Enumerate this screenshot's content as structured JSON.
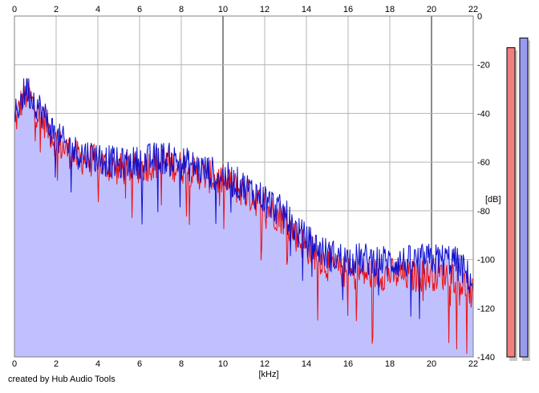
{
  "chart_data": {
    "type": "line",
    "title": "",
    "xlabel": "[kHz]",
    "ylabel": "[dB]",
    "xlim": [
      0,
      22
    ],
    "ylim": [
      -140,
      0
    ],
    "x_ticks": [
      "0",
      "2",
      "4",
      "6",
      "8",
      "10",
      "12",
      "14",
      "16",
      "18",
      "20",
      "22"
    ],
    "y_ticks": [
      "0",
      "-20",
      "-40",
      "-60",
      "-80",
      "-100",
      "-120",
      "-140"
    ],
    "grid": true,
    "fill_under_series": "combined",
    "series": [
      {
        "color": "#ee1111",
        "envelope_x": [
          0,
          0.3,
          0.6,
          1,
          1.5,
          2,
          2.5,
          3,
          4,
          5,
          6,
          7,
          8,
          9,
          10,
          11,
          12,
          13,
          13.5,
          14,
          14.5,
          15,
          16,
          17,
          18,
          19,
          20,
          21,
          21.5,
          22
        ],
        "envelope_y": [
          -45,
          -36,
          -32,
          -38,
          -44,
          -52,
          -55,
          -58,
          -60,
          -63,
          -62,
          -60,
          -62,
          -65,
          -68,
          -72,
          -78,
          -84,
          -90,
          -95,
          -98,
          -102,
          -106,
          -106,
          -106,
          -107,
          -106,
          -106,
          -110,
          -115
        ]
      },
      {
        "color": "#1111cc",
        "envelope_x": [
          0,
          0.3,
          0.6,
          1,
          1.5,
          2,
          2.5,
          3,
          4,
          5,
          6,
          7,
          8,
          9,
          10,
          11,
          12,
          13,
          13.5,
          14,
          14.5,
          15,
          16,
          17,
          18,
          19,
          20,
          21,
          21.5,
          22
        ],
        "envelope_y": [
          -42,
          -34,
          -30,
          -35,
          -42,
          -50,
          -53,
          -56,
          -58,
          -61,
          -60,
          -58,
          -60,
          -63,
          -66,
          -70,
          -75,
          -82,
          -88,
          -92,
          -95,
          -98,
          -100,
          -100,
          -101,
          -101,
          -100,
          -100,
          -104,
          -110
        ]
      }
    ],
    "level_meters": [
      {
        "color": "#f08080",
        "level_db": -13
      },
      {
        "color": "#9999ee",
        "level_db": -9
      }
    ],
    "colors": {
      "fill": "#c0c0ff",
      "grid": "#b4b4b4",
      "grid_major": "#8c8c8c"
    }
  },
  "footer": {
    "credit": "created by Hub Audio Tools"
  }
}
